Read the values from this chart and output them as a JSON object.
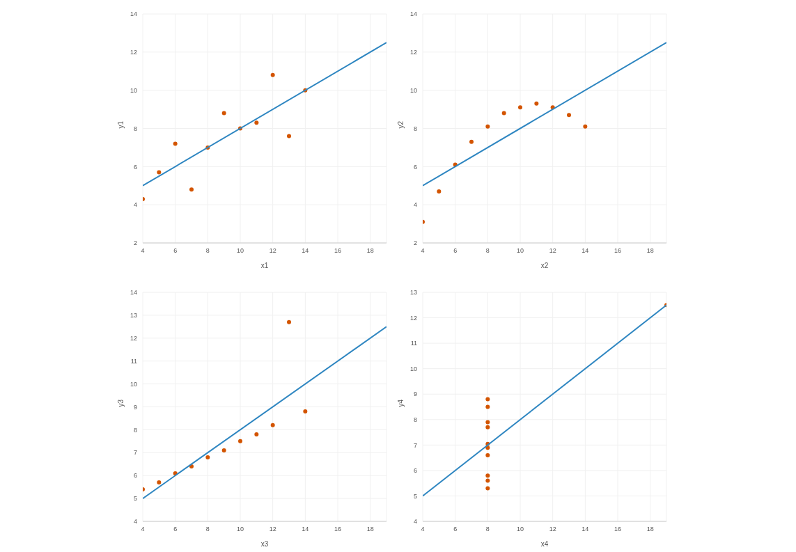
{
  "chart_data": [
    {
      "type": "scatter",
      "xlabel": "x1",
      "ylabel": "y1",
      "xlim": [
        4,
        19
      ],
      "xticks": [
        4,
        6,
        8,
        10,
        12,
        14,
        16,
        18
      ],
      "ylim": [
        2,
        14
      ],
      "yticks": [
        2,
        4,
        6,
        8,
        10,
        12,
        14
      ],
      "grid": true,
      "legend": false,
      "series": [
        {
          "marker": "circle",
          "color": "#d35400",
          "x": [
            10,
            8,
            13,
            9,
            11,
            14,
            6,
            4,
            12,
            7,
            5
          ],
          "values": [
            8.0,
            7.0,
            7.6,
            8.8,
            8.3,
            10.0,
            7.2,
            4.3,
            10.8,
            4.8,
            5.7
          ]
        },
        {
          "type": "line",
          "color": "#2e86c1",
          "x": [
            4,
            19
          ],
          "values": [
            5,
            12.5
          ]
        }
      ]
    },
    {
      "type": "scatter",
      "xlabel": "x2",
      "ylabel": "y2",
      "xlim": [
        4,
        19
      ],
      "xticks": [
        4,
        6,
        8,
        10,
        12,
        14,
        16,
        18
      ],
      "ylim": [
        2,
        14
      ],
      "yticks": [
        2,
        4,
        6,
        8,
        10,
        12,
        14
      ],
      "grid": true,
      "legend": false,
      "series": [
        {
          "marker": "circle",
          "color": "#d35400",
          "x": [
            10,
            8,
            13,
            9,
            11,
            14,
            6,
            4,
            12,
            7,
            5
          ],
          "values": [
            9.1,
            8.1,
            8.7,
            8.8,
            9.3,
            8.1,
            6.1,
            3.1,
            9.1,
            7.3,
            4.7
          ]
        },
        {
          "type": "line",
          "color": "#2e86c1",
          "x": [
            4,
            19
          ],
          "values": [
            5,
            12.5
          ]
        }
      ]
    },
    {
      "type": "scatter",
      "xlabel": "x3",
      "ylabel": "y3",
      "xlim": [
        4,
        19
      ],
      "xticks": [
        4,
        6,
        8,
        10,
        12,
        14,
        16,
        18
      ],
      "ylim": [
        4,
        14
      ],
      "yticks": [
        4,
        5,
        6,
        7,
        8,
        9,
        10,
        11,
        12,
        13,
        14
      ],
      "grid": true,
      "legend": false,
      "series": [
        {
          "marker": "circle",
          "color": "#d35400",
          "x": [
            10,
            8,
            13,
            9,
            11,
            14,
            6,
            4,
            12,
            7,
            5
          ],
          "values": [
            7.5,
            6.8,
            12.7,
            7.1,
            7.8,
            8.8,
            6.1,
            5.4,
            8.2,
            6.4,
            5.7
          ]
        },
        {
          "type": "line",
          "color": "#2e86c1",
          "x": [
            4,
            19
          ],
          "values": [
            5,
            12.5
          ]
        }
      ]
    },
    {
      "type": "scatter",
      "xlabel": "x4",
      "ylabel": "y4",
      "xlim": [
        4,
        19
      ],
      "xticks": [
        4,
        6,
        8,
        10,
        12,
        14,
        16,
        18
      ],
      "ylim": [
        4,
        13
      ],
      "yticks": [
        4,
        5,
        6,
        7,
        8,
        9,
        10,
        11,
        12,
        13
      ],
      "grid": true,
      "legend": false,
      "series": [
        {
          "marker": "circle",
          "color": "#d35400",
          "x": [
            8,
            8,
            8,
            8,
            8,
            8,
            8,
            19,
            8,
            8,
            8
          ],
          "values": [
            6.6,
            5.8,
            7.7,
            8.8,
            8.5,
            7.04,
            5.3,
            12.5,
            5.6,
            7.9,
            6.89
          ]
        },
        {
          "type": "line",
          "color": "#2e86c1",
          "x": [
            4,
            19
          ],
          "values": [
            5,
            12.5
          ]
        }
      ]
    }
  ]
}
